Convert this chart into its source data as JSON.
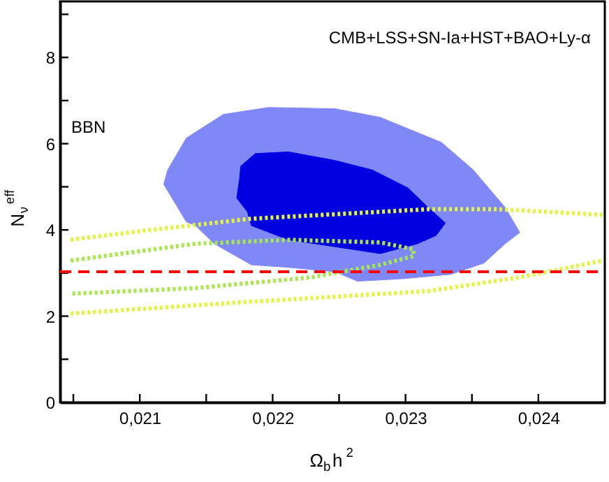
{
  "chart_data": {
    "type": "line",
    "xlabel": "Ω$_{b}$h$^{2}$",
    "ylabel": "N$_{ν}$$^{eff}$",
    "xlim": [
      0.0204,
      0.0245
    ],
    "ylim": [
      0,
      9.3
    ],
    "xticks": [
      {
        "value": 0.0205,
        "label": null
      },
      {
        "value": 0.021,
        "label": "0,021"
      },
      {
        "value": 0.0215,
        "label": null
      },
      {
        "value": 0.022,
        "label": "0,022"
      },
      {
        "value": 0.0225,
        "label": null
      },
      {
        "value": 0.023,
        "label": "0,023"
      },
      {
        "value": 0.0235,
        "label": null
      },
      {
        "value": 0.024,
        "label": "0,024"
      }
    ],
    "yticks": [
      0,
      {
        "value": 1,
        "label": null
      },
      2,
      {
        "value": 3,
        "label": null
      },
      4,
      {
        "value": 5,
        "label": null
      },
      6,
      {
        "value": 7,
        "label": null
      },
      8,
      {
        "value": 9,
        "label": null
      }
    ],
    "series": [
      {
        "type": "area",
        "color": "#8088f8",
        "x": [
          0.02118,
          0.02121,
          0.02135,
          0.02163,
          0.02197,
          0.02247,
          0.02281,
          0.02327,
          0.02351,
          0.02375,
          0.02386,
          0.02375,
          0.02359,
          0.02334,
          0.02299,
          0.02264,
          0.02247,
          0.02212,
          0.02184,
          0.02156,
          0.02142,
          0.02135
        ],
        "values": [
          5.06,
          5.39,
          6.13,
          6.68,
          6.84,
          6.81,
          6.61,
          6.03,
          5.39,
          4.52,
          3.94,
          3.68,
          3.23,
          2.97,
          2.87,
          2.81,
          3.03,
          3.13,
          3.19,
          3.68,
          4.1,
          4.19
        ]
      },
      {
        "type": "area",
        "color": "#0000e0",
        "x": [
          0.02176,
          0.02187,
          0.02212,
          0.02247,
          0.02275,
          0.02302,
          0.02317,
          0.0233,
          0.02323,
          0.02309,
          0.02281,
          0.02247,
          0.02212,
          0.02184,
          0.02181,
          0.02173,
          0.02175
        ],
        "values": [
          5.48,
          5.77,
          5.81,
          5.61,
          5.39,
          4.97,
          4.52,
          4.16,
          3.87,
          3.68,
          3.45,
          3.61,
          3.77,
          4.1,
          4.42,
          4.74,
          5.16
        ]
      },
      {
        "color": "#e2f53c",
        "line_style": "dotted",
        "x": [
          0.02048,
          0.021,
          0.02184,
          0.02317,
          0.02369,
          0.02449
        ],
        "values": [
          3.77,
          3.97,
          4.26,
          4.48,
          4.48,
          4.35
        ]
      },
      {
        "color": "#e2f53c",
        "line_style": "dotted",
        "x": [
          0.02048,
          0.02176,
          0.02317,
          0.02386,
          0.02449
        ],
        "values": [
          2.06,
          2.32,
          2.58,
          2.9,
          3.29
        ]
      },
      {
        "color": "#a6e84a",
        "line_style": "dotted",
        "x": [
          0.02048,
          0.02142,
          0.02212,
          0.02281,
          0.02306,
          0.02306,
          0.02281,
          0.02229,
          0.02142,
          0.02048
        ],
        "values": [
          3.29,
          3.68,
          3.77,
          3.71,
          3.55,
          3.39,
          3.19,
          2.9,
          2.65,
          2.52
        ]
      }
    ],
    "ref_lines": [
      {
        "axis": "y",
        "value": 3.03,
        "color": "#ff0000",
        "line_style": "dashed"
      }
    ],
    "annotations": [
      "CMB+LSS+SN-Ia+HST+BAO+Ly-α",
      "BBN"
    ]
  }
}
